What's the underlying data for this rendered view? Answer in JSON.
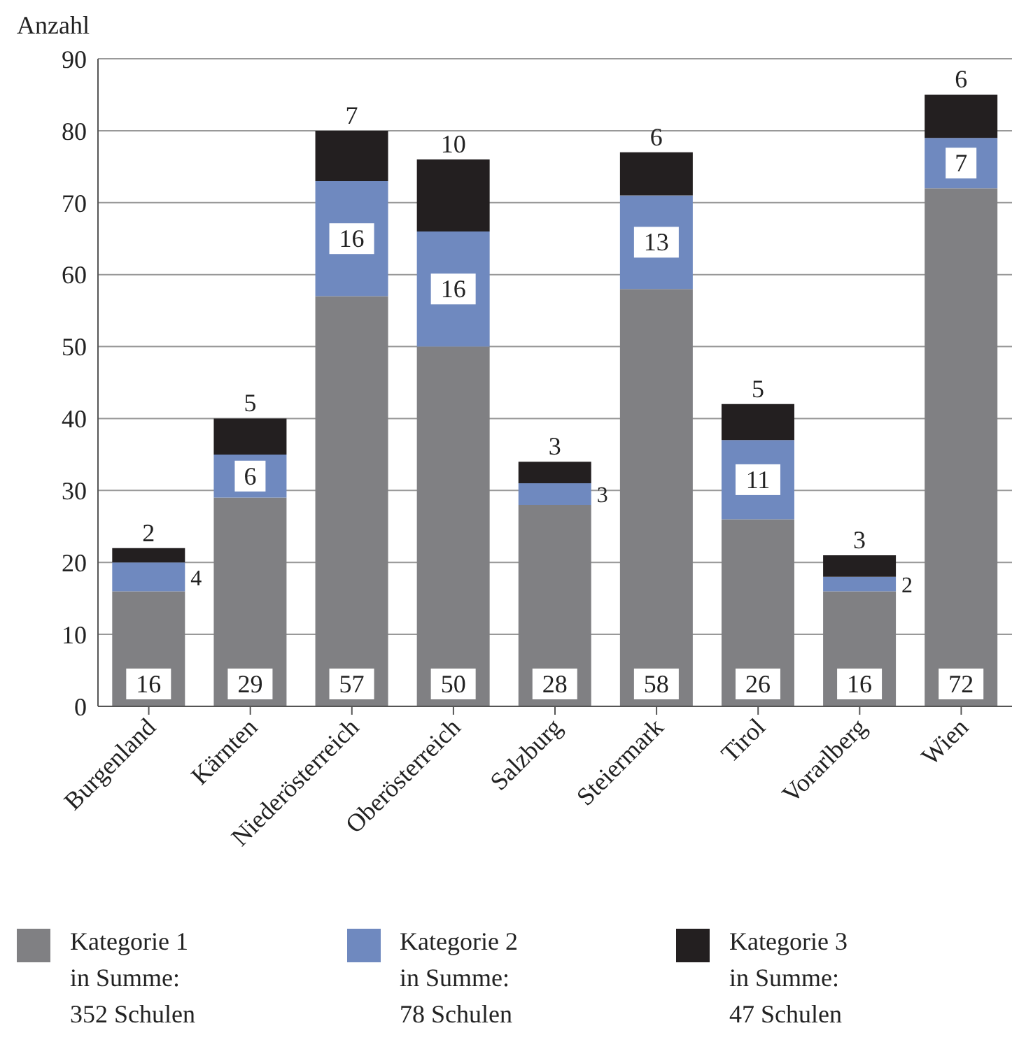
{
  "chart_data": {
    "type": "bar",
    "stacked": true,
    "ylabel": "Anzahl",
    "categories": [
      "Burgenland",
      "Kärnten",
      "Niederösterreich",
      "Oberösterreich",
      "Salzburg",
      "Steiermark",
      "Tirol",
      "Vorarlberg",
      "Wien"
    ],
    "series": [
      {
        "name": "Kategorie 1\nin Summe:\n352 Schulen",
        "color": "#808083",
        "values": [
          16,
          29,
          57,
          50,
          28,
          58,
          26,
          16,
          72
        ]
      },
      {
        "name": "Kategorie 2\nin Summe:\n78 Schulen",
        "color": "#6f89bf",
        "values": [
          4,
          6,
          16,
          16,
          3,
          13,
          11,
          2,
          7
        ]
      },
      {
        "name": "Kategorie 3\nin Summe:\n47 Schulen",
        "color": "#231f20",
        "values": [
          2,
          5,
          7,
          10,
          3,
          6,
          5,
          3,
          6
        ]
      }
    ],
    "ylim": [
      0,
      90
    ],
    "yticks": [
      0,
      10,
      20,
      30,
      40,
      50,
      60,
      70,
      80,
      90
    ],
    "grid": "y",
    "data_labels": true,
    "legend": "bottom"
  }
}
